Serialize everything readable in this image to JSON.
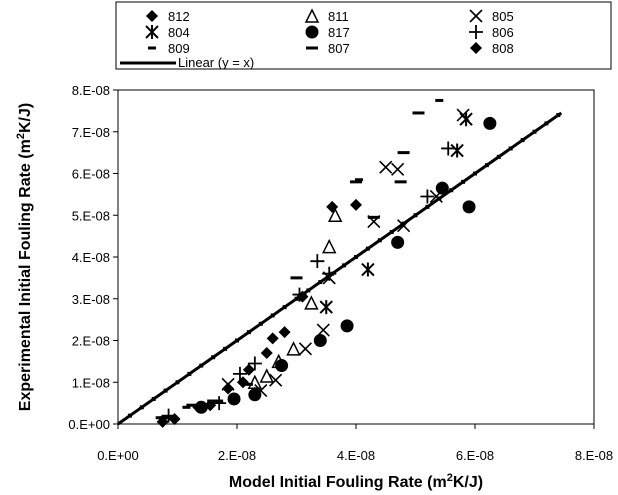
{
  "chart_data": {
    "type": "scatter",
    "title": "",
    "xlabel": {
      "main": "Model Initial Fouling Rate (m",
      "sup": "2",
      "end": "K/J)"
    },
    "ylabel": {
      "main": "Experimental Initial Fouling Rate (m",
      "sup": "2",
      "end": "K/J)"
    },
    "xlim": [
      0,
      8e-08
    ],
    "ylim": [
      0,
      8e-08
    ],
    "x_ticks": [
      {
        "value": 0,
        "label": "0.E+00"
      },
      {
        "value": 2e-08,
        "label": "2.E-08"
      },
      {
        "value": 4e-08,
        "label": "4.E-08"
      },
      {
        "value": 6e-08,
        "label": "6.E-08"
      },
      {
        "value": 8e-08,
        "label": "8.E-08"
      }
    ],
    "y_ticks": [
      {
        "value": 0,
        "label": "0.E+00"
      },
      {
        "value": 1e-08,
        "label": "1.E-08"
      },
      {
        "value": 2e-08,
        "label": "2.E-08"
      },
      {
        "value": 3e-08,
        "label": "3.E-08"
      },
      {
        "value": 4e-08,
        "label": "4.E-08"
      },
      {
        "value": 5e-08,
        "label": "5.E-08"
      },
      {
        "value": 6e-08,
        "label": "6.E-08"
      },
      {
        "value": 7e-08,
        "label": "7.E-08"
      },
      {
        "value": 8e-08,
        "label": "8.E-08"
      }
    ],
    "grid": false,
    "legend_position": "top",
    "series": [
      {
        "name": "812",
        "marker": "diamond",
        "points": [
          [
            7.5e-09,
            5e-10
          ],
          [
            9.5e-09,
            1.2e-09
          ],
          [
            1.55e-08,
            4.5e-09
          ],
          [
            1.85e-08,
            8.5e-09
          ],
          [
            2.1e-08,
            1e-08
          ],
          [
            2.2e-08,
            1.3e-08
          ],
          [
            2.5e-08,
            1.7e-08
          ],
          [
            2.8e-08,
            2.2e-08
          ],
          [
            3.6e-08,
            5.2e-08
          ],
          [
            4e-08,
            5.25e-08
          ]
        ]
      },
      {
        "name": "811",
        "marker": "triangle-open",
        "points": [
          [
            2.3e-08,
            1e-08
          ],
          [
            2.5e-08,
            1.15e-08
          ],
          [
            2.7e-08,
            1.5e-08
          ],
          [
            2.95e-08,
            1.8e-08
          ],
          [
            3.25e-08,
            2.9e-08
          ],
          [
            3.55e-08,
            4.25e-08
          ],
          [
            3.65e-08,
            5e-08
          ]
        ]
      },
      {
        "name": "805",
        "marker": "x",
        "points": [
          [
            1.85e-08,
            9.5e-09
          ],
          [
            2.4e-08,
            8e-09
          ],
          [
            2.65e-08,
            1.05e-08
          ],
          [
            3.15e-08,
            1.8e-08
          ],
          [
            3.45e-08,
            2.25e-08
          ],
          [
            3.55e-08,
            3.5e-08
          ],
          [
            4.3e-08,
            4.85e-08
          ],
          [
            4.5e-08,
            6.15e-08
          ],
          [
            4.7e-08,
            6.1e-08
          ],
          [
            4.8e-08,
            4.75e-08
          ],
          [
            5.35e-08,
            5.45e-08
          ],
          [
            5.8e-08,
            7.4e-08
          ]
        ]
      },
      {
        "name": "804",
        "marker": "asterisk",
        "points": [
          [
            3.5e-08,
            2.8e-08
          ],
          [
            4.2e-08,
            3.7e-08
          ],
          [
            5.7e-08,
            6.55e-08
          ],
          [
            5.85e-08,
            7.3e-08
          ]
        ]
      },
      {
        "name": "817",
        "marker": "circle",
        "points": [
          [
            1.4e-08,
            4e-09
          ],
          [
            1.95e-08,
            6e-09
          ],
          [
            2.3e-08,
            7e-09
          ],
          [
            2.75e-08,
            1.4e-08
          ],
          [
            3.4e-08,
            2e-08
          ],
          [
            3.85e-08,
            2.35e-08
          ],
          [
            4.7e-08,
            4.35e-08
          ],
          [
            5.45e-08,
            5.65e-08
          ],
          [
            5.9e-08,
            5.2e-08
          ],
          [
            6.25e-08,
            7.2e-08
          ]
        ]
      },
      {
        "name": "806",
        "marker": "plus",
        "points": [
          [
            8.5e-09,
            2e-09
          ],
          [
            1.7e-08,
            5e-09
          ],
          [
            2.05e-08,
            1.2e-08
          ],
          [
            2.3e-08,
            1.45e-08
          ],
          [
            3.05e-08,
            3.1e-08
          ],
          [
            3.35e-08,
            3.9e-08
          ],
          [
            3.55e-08,
            3.6e-08
          ],
          [
            5.2e-08,
            5.45e-08
          ],
          [
            5.55e-08,
            6.6e-08
          ]
        ]
      },
      {
        "name": "809",
        "marker": "dash-short",
        "points": [
          [
            7e-09,
            1.5e-09
          ],
          [
            1.15e-08,
            4e-09
          ],
          [
            1.7e-08,
            5.5e-09
          ],
          [
            2.2e-08,
            9.5e-09
          ],
          [
            4.05e-08,
            5.85e-08
          ],
          [
            5.4e-08,
            7.75e-08
          ]
        ]
      },
      {
        "name": "807",
        "marker": "dash",
        "points": [
          [
            8e-09,
            1.5e-09
          ],
          [
            1.25e-08,
            4.5e-09
          ],
          [
            1.6e-08,
            5.5e-09
          ],
          [
            3e-08,
            3.5e-08
          ],
          [
            4e-08,
            5.8e-08
          ],
          [
            4.8e-08,
            6.5e-08
          ],
          [
            5.05e-08,
            7.45e-08
          ],
          [
            4.3e-08,
            4.95e-08
          ],
          [
            4.75e-08,
            5.8e-08
          ]
        ]
      },
      {
        "name": "808",
        "marker": "diamond",
        "points": [
          [
            1.35e-08,
            4e-09
          ],
          [
            2.3e-08,
            7.5e-09
          ],
          [
            2.6e-08,
            2.05e-08
          ],
          [
            3.1e-08,
            3.05e-08
          ]
        ]
      }
    ],
    "reference_line": {
      "name": "Linear (y = x)",
      "from": [
        0,
        0
      ],
      "to": [
        7.45e-08,
        7.45e-08
      ]
    }
  }
}
